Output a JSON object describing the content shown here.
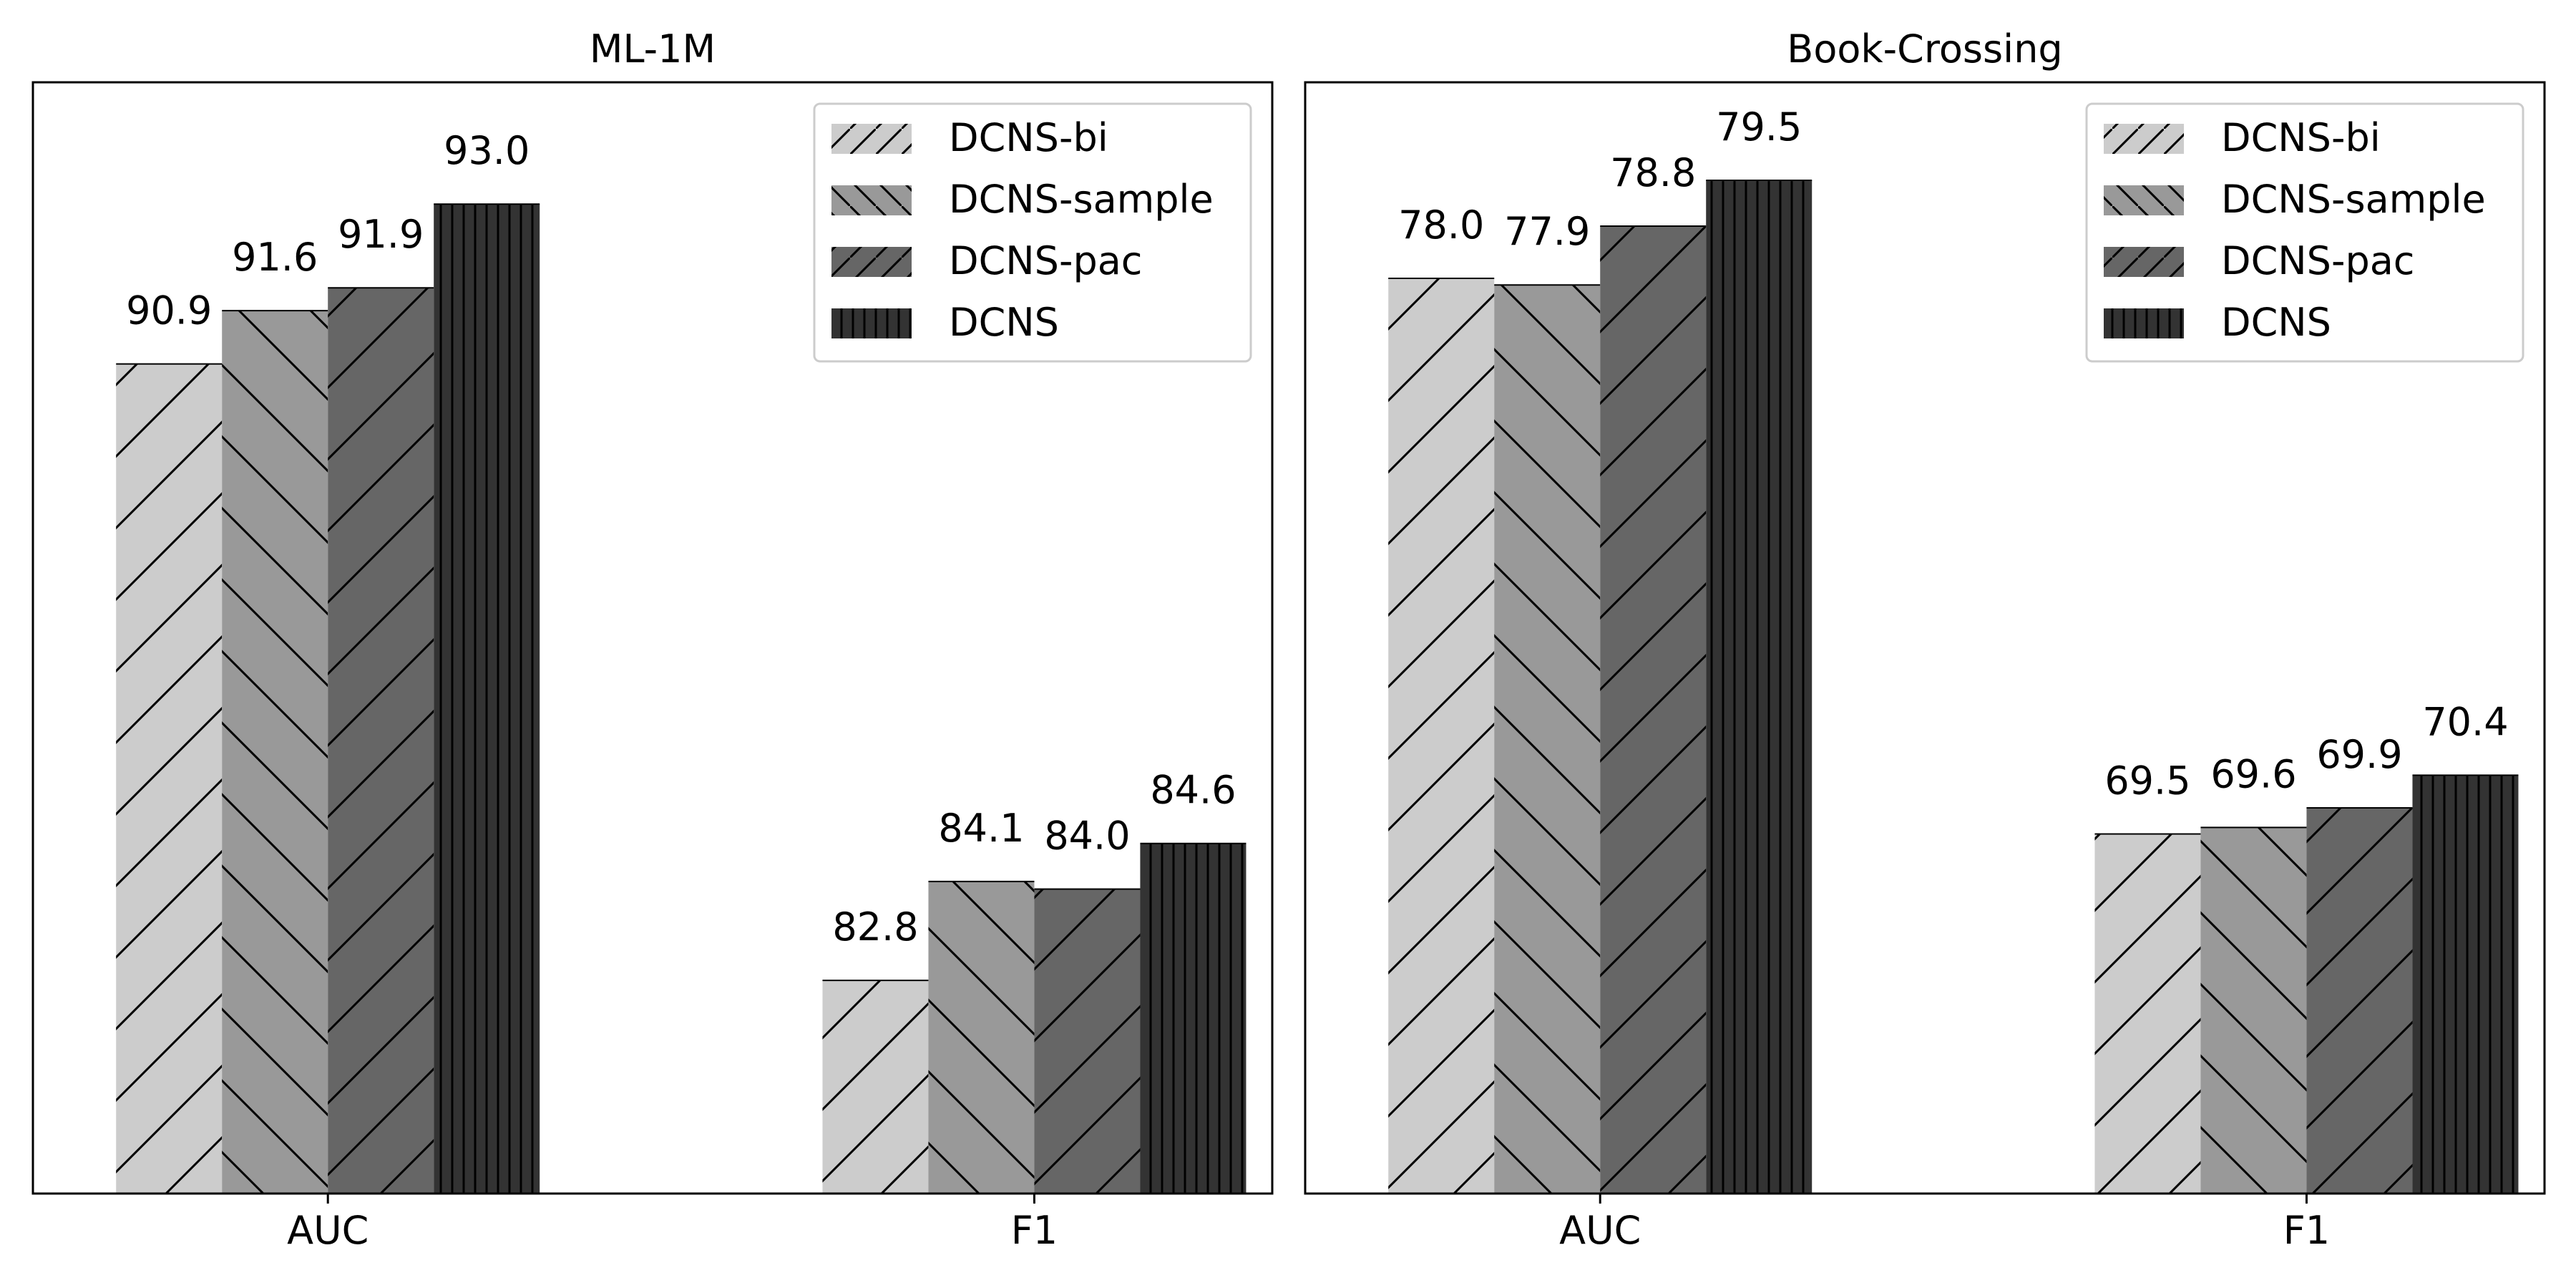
{
  "chart_data": [
    {
      "type": "bar",
      "title": "ML-1M",
      "categories": [
        "AUC",
        "F1"
      ],
      "series": [
        {
          "name": "DCNS-bi",
          "values": [
            90.9,
            82.8
          ],
          "labels": [
            "90.9",
            "82.8"
          ],
          "color": "#cccccc",
          "hatch": "slash"
        },
        {
          "name": "DCNS-sample",
          "values": [
            91.6,
            84.1
          ],
          "labels": [
            "91.6",
            "84.1"
          ],
          "color": "#999999",
          "hatch": "backslash"
        },
        {
          "name": "DCNS-pac",
          "values": [
            91.9,
            84.0
          ],
          "labels": [
            "91.9",
            "84.0"
          ],
          "color": "#666666",
          "hatch": "slash"
        },
        {
          "name": "DCNS",
          "values": [
            93.0,
            84.6
          ],
          "labels": [
            "93.0",
            "84.6"
          ],
          "color": "#333333",
          "hatch": "vertical"
        }
      ],
      "ylim": [
        80.0,
        94.6
      ],
      "legend": "top-right",
      "grid": false
    },
    {
      "type": "bar",
      "title": "Book-Crossing",
      "categories": [
        "AUC",
        "F1"
      ],
      "series": [
        {
          "name": "DCNS-bi",
          "values": [
            78.0,
            69.5
          ],
          "labels": [
            "78.0",
            "69.5"
          ],
          "color": "#cccccc",
          "hatch": "slash"
        },
        {
          "name": "DCNS-sample",
          "values": [
            77.9,
            69.6
          ],
          "labels": [
            "77.9",
            "69.6"
          ],
          "color": "#999999",
          "hatch": "backslash"
        },
        {
          "name": "DCNS-pac",
          "values": [
            78.8,
            69.9
          ],
          "labels": [
            "78.8",
            "69.9"
          ],
          "color": "#666666",
          "hatch": "slash"
        },
        {
          "name": "DCNS",
          "values": [
            79.5,
            70.4
          ],
          "labels": [
            "79.5",
            "70.4"
          ],
          "color": "#333333",
          "hatch": "vertical"
        }
      ],
      "ylim": [
        64.0,
        81.0
      ],
      "legend": "top-right",
      "grid": false
    }
  ]
}
